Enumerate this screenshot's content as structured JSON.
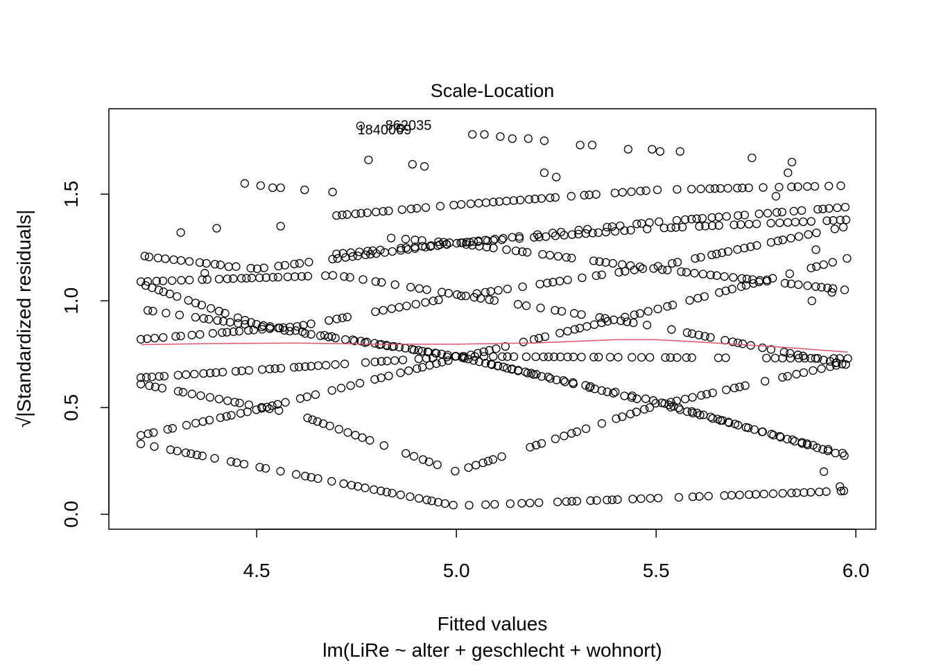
{
  "chart_data": {
    "type": "scatter",
    "title": "Scale-Location",
    "xlabel": "Fitted values",
    "xlabel_sub": "lm(LiRe ~ alter + geschlecht + wohnort)",
    "ylabel": "√|Standardized residuals|",
    "xlim": [
      4.13,
      6.05
    ],
    "ylim": [
      -0.07,
      1.9
    ],
    "xticks": [
      "4.5",
      "5.0",
      "5.5",
      "6.0"
    ],
    "yticks": [
      "0.0",
      "0.5",
      "1.0",
      "1.5"
    ],
    "grid": false,
    "point_style": "open-circle",
    "smoother_color": "#DF536B",
    "point_labels": [
      {
        "text": "862035",
        "x": 4.88,
        "y": 1.82
      },
      {
        "text": "1840069",
        "x": 4.82,
        "y": 1.8
      }
    ],
    "smoother": {
      "x": [
        4.21,
        4.4,
        4.6,
        4.8,
        5.0,
        5.2,
        5.4,
        5.5,
        5.6,
        5.8,
        5.98
      ],
      "y": [
        0.795,
        0.8,
        0.802,
        0.797,
        0.797,
        0.803,
        0.818,
        0.818,
        0.808,
        0.785,
        0.76
      ]
    },
    "curves": [
      {
        "name": "v-bottom",
        "breaks": [
          4.21,
          5.0,
          5.98
        ],
        "vals": [
          0.33,
          0.04,
          0.11
        ]
      },
      {
        "name": "v-top",
        "breaks": [
          4.21,
          5.0,
          5.98
        ],
        "vals": [
          0.64,
          0.74,
          0.73
        ]
      },
      {
        "name": "rise-low",
        "breaks": [
          4.21,
          4.47,
          5.0,
          5.5,
          5.98
        ],
        "vals": [
          0.96,
          0.89,
          0.74,
          0.52,
          0.28
        ]
      },
      {
        "name": "fall-high",
        "breaks": [
          4.21,
          4.5,
          5.0,
          5.5,
          5.98
        ],
        "vals": [
          0.37,
          0.49,
          0.73,
          0.96,
          1.2
        ]
      },
      {
        "name": "drop-a",
        "breaks": [
          4.21,
          4.6,
          5.0,
          5.5,
          5.98
        ],
        "vals": [
          0.61,
          0.47,
          0.2,
          0.51,
          0.71
        ]
      },
      {
        "name": "mid-a",
        "breaks": [
          4.21,
          4.6,
          5.0,
          5.5,
          5.98
        ],
        "vals": [
          0.82,
          0.88,
          1.02,
          1.16,
          1.35
        ]
      },
      {
        "name": "mid-b",
        "breaks": [
          4.21,
          4.5,
          5.0,
          5.5,
          5.98
        ],
        "vals": [
          1.08,
          0.89,
          0.74,
          0.53,
          0.27
        ]
      },
      {
        "name": "high-a",
        "breaks": [
          4.21,
          4.5,
          5.0,
          5.5,
          5.98
        ],
        "vals": [
          1.21,
          1.15,
          1.27,
          1.37,
          1.44
        ]
      },
      {
        "name": "high-b",
        "breaks": [
          4.21,
          4.7,
          5.0,
          5.5,
          5.98
        ],
        "vals": [
          1.09,
          1.12,
          1.03,
          0.88,
          0.7
        ]
      },
      {
        "name": "upper-a",
        "breaks": [
          4.7,
          5.0,
          5.5,
          5.98
        ],
        "vals": [
          1.4,
          1.45,
          1.52,
          1.54
        ]
      },
      {
        "name": "upper-b",
        "breaks": [
          4.7,
          5.0,
          5.5,
          5.98
        ],
        "vals": [
          1.22,
          1.27,
          1.34,
          1.38
        ]
      },
      {
        "name": "upper-c",
        "breaks": [
          4.8,
          5.0,
          5.5,
          5.98
        ],
        "vals": [
          1.3,
          1.27,
          1.15,
          1.05
        ]
      }
    ],
    "extra_points": [
      [
        4.22,
        1.21
      ],
      [
        4.31,
        1.32
      ],
      [
        4.4,
        1.34
      ],
      [
        4.47,
        1.55
      ],
      [
        4.51,
        1.54
      ],
      [
        4.54,
        1.53
      ],
      [
        4.56,
        1.53
      ],
      [
        4.56,
        1.35
      ],
      [
        4.62,
        1.52
      ],
      [
        4.69,
        1.51
      ],
      [
        4.76,
        1.82
      ],
      [
        4.78,
        1.66
      ],
      [
        4.86,
        1.81
      ],
      [
        4.89,
        1.64
      ],
      [
        4.92,
        1.63
      ],
      [
        5.04,
        1.78
      ],
      [
        5.07,
        1.78
      ],
      [
        5.11,
        1.77
      ],
      [
        5.14,
        1.76
      ],
      [
        5.18,
        1.76
      ],
      [
        5.22,
        1.75
      ],
      [
        5.22,
        1.6
      ],
      [
        5.25,
        1.58
      ],
      [
        5.31,
        1.73
      ],
      [
        5.34,
        1.73
      ],
      [
        5.43,
        1.71
      ],
      [
        5.49,
        1.71
      ],
      [
        5.51,
        1.7
      ],
      [
        5.56,
        1.7
      ],
      [
        5.74,
        1.67
      ],
      [
        5.8,
        1.49
      ],
      [
        5.83,
        1.6
      ],
      [
        5.84,
        1.65
      ],
      [
        5.9,
        1.24
      ],
      [
        5.94,
        1.04
      ],
      [
        5.89,
        1.0
      ],
      [
        5.95,
        0.71
      ],
      [
        5.92,
        0.2
      ],
      [
        5.96,
        0.13
      ],
      [
        5.97,
        0.11
      ],
      [
        4.37,
        1.13
      ],
      [
        4.43,
        1.16
      ]
    ]
  }
}
